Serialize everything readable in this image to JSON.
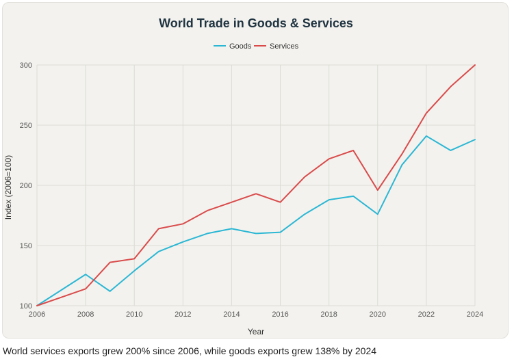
{
  "chart_data": {
    "type": "line",
    "title": "World Trade in Goods & Services",
    "xlabel": "Year",
    "ylabel": "Index (2006=100)",
    "x": [
      2006,
      2007,
      2008,
      2009,
      2010,
      2011,
      2012,
      2013,
      2014,
      2015,
      2016,
      2017,
      2018,
      2019,
      2020,
      2021,
      2022,
      2023,
      2024
    ],
    "series": [
      {
        "name": "Goods",
        "color": "#2bb7d4",
        "values": [
          100,
          113,
          126,
          112,
          129,
          145,
          153,
          160,
          164,
          160,
          161,
          176,
          188,
          191,
          176,
          217,
          241,
          229,
          238
        ]
      },
      {
        "name": "Services",
        "color": "#d94b4b",
        "values": [
          100,
          107,
          114,
          136,
          139,
          164,
          168,
          179,
          186,
          193,
          186,
          207,
          222,
          229,
          196,
          226,
          260,
          282,
          300
        ]
      }
    ],
    "xticks": [
      2006,
      2008,
      2010,
      2012,
      2014,
      2016,
      2018,
      2020,
      2022,
      2024
    ],
    "yticks": [
      100,
      150,
      200,
      250,
      300
    ],
    "xlim": [
      2006,
      2024
    ],
    "ylim": [
      100,
      300
    ],
    "grid": true,
    "legend_position": "top-center"
  },
  "caption": "World services exports grew 200% since 2006, while goods exports grew 138% by 2024"
}
